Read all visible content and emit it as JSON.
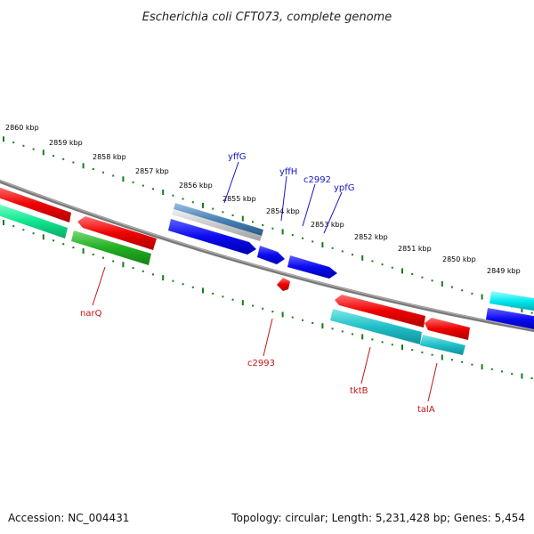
{
  "title": "Escherichia coli CFT073, complete genome",
  "footer": {
    "accession": "Accession: NC_004431",
    "summary": "Topology: circular; Length: 5,231,428 bp; Genes: 5,454"
  },
  "colors": {
    "backbone": "#7a7a7a",
    "ticks": "#1a7a1a",
    "forward_label": "#1515c8",
    "reverse_label": "#c81414"
  },
  "tick_labels": [
    "2860 kbp",
    "2859 kbp",
    "2858 kbp",
    "2857 kbp",
    "2856 kbp",
    "2855 kbp",
    "2854 kbp",
    "2853 kbp",
    "2852 kbp",
    "2851 kbp",
    "2850 kbp",
    "2849 kbp"
  ],
  "gene_labels": {
    "forward": [
      "yffG",
      "yffH",
      "c2992",
      "ypfG"
    ],
    "reverse": [
      "narQ",
      "c2993",
      "tktB",
      "talA"
    ]
  }
}
